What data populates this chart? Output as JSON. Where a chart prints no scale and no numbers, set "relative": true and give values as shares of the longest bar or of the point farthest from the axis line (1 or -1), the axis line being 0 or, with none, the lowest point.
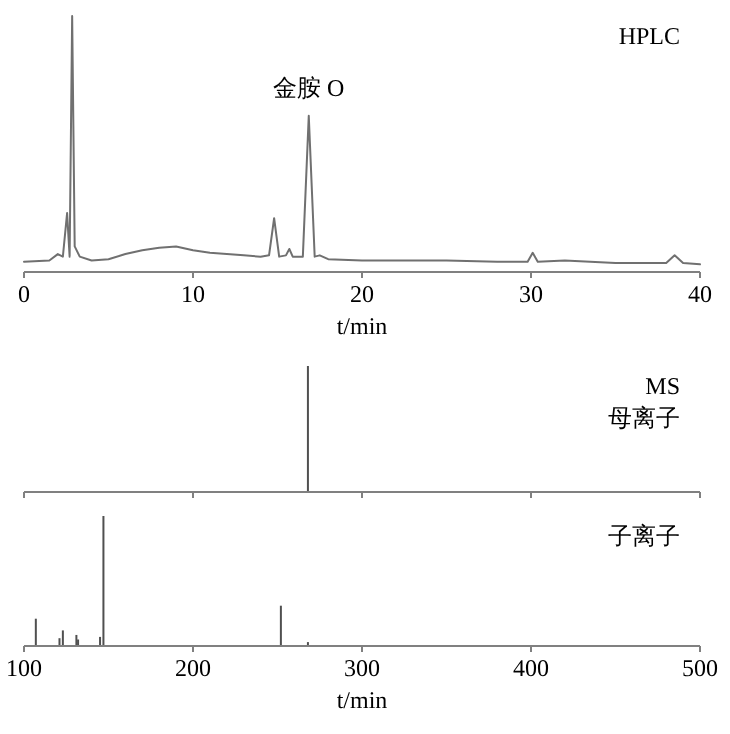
{
  "chart_data": [
    {
      "type": "line",
      "relative": true,
      "color": "#707070",
      "xlim": [
        0,
        40
      ],
      "xticks": [
        0,
        10,
        20,
        30,
        40
      ],
      "xlabel": "t/min",
      "x": [
        0,
        1.5,
        2.0,
        2.3,
        2.55,
        2.7,
        2.85,
        3.0,
        3.3,
        4,
        5,
        6,
        7,
        8,
        9,
        10,
        11,
        12,
        13,
        14,
        14.5,
        14.8,
        15.1,
        15.5,
        15.7,
        15.9,
        16.5,
        16.85,
        17.2,
        17.5,
        18,
        20,
        22,
        25,
        28,
        29.8,
        30.1,
        30.4,
        32,
        35,
        38,
        38.5,
        39,
        40
      ],
      "values": [
        0.04,
        0.045,
        0.07,
        0.06,
        0.23,
        0.06,
        1.0,
        0.1,
        0.06,
        0.045,
        0.05,
        0.07,
        0.085,
        0.095,
        0.1,
        0.085,
        0.075,
        0.07,
        0.065,
        0.06,
        0.065,
        0.21,
        0.06,
        0.065,
        0.09,
        0.06,
        0.06,
        0.61,
        0.06,
        0.065,
        0.05,
        0.045,
        0.045,
        0.045,
        0.04,
        0.04,
        0.075,
        0.04,
        0.045,
        0.035,
        0.035,
        0.065,
        0.035,
        0.03
      ],
      "annotations": [
        "HPLC",
        {
          "text": "金胺 O",
          "x": 16.85,
          "y": 0.61
        }
      ]
    },
    {
      "type": "bar",
      "relative": true,
      "color": "#505050",
      "xlim": [
        100,
        500
      ],
      "xticks": [
        100,
        200,
        300,
        400,
        500
      ],
      "tick_labels": false,
      "x": [
        268
      ],
      "values": [
        1.0
      ],
      "annotations": [
        "MS",
        "母离子"
      ]
    },
    {
      "type": "bar",
      "relative": true,
      "color": "#505050",
      "xlim": [
        100,
        500
      ],
      "xticks": [
        100,
        200,
        300,
        400,
        500
      ],
      "xlabel": "t/min",
      "x": [
        107,
        121,
        123,
        131,
        132,
        145,
        147,
        252,
        268
      ],
      "values": [
        0.21,
        0.06,
        0.12,
        0.085,
        0.05,
        0.07,
        1.0,
        0.31,
        0.03
      ],
      "annotations": [
        "子离子"
      ]
    }
  ]
}
